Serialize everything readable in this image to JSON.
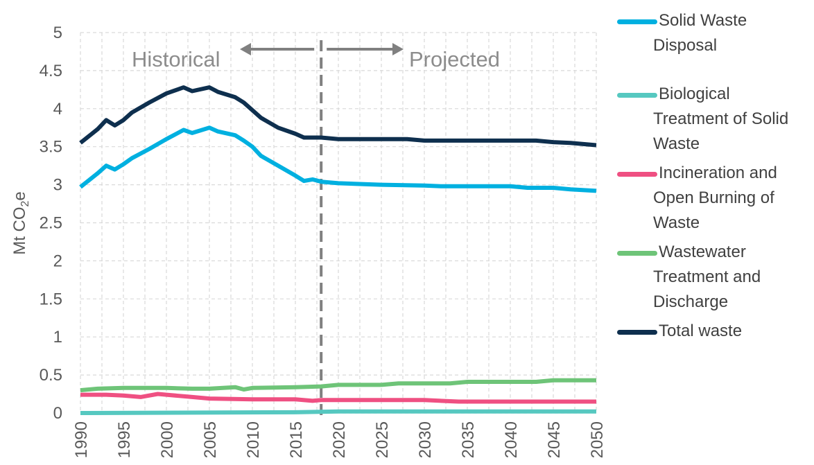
{
  "chart_data": {
    "type": "line",
    "ylabel": "Mt CO2e",
    "ylim": [
      0,
      5
    ],
    "xlim": [
      1990,
      2050
    ],
    "yticks": [
      "0",
      "0.5",
      "1",
      "1.5",
      "2",
      "2.5",
      "3",
      "3.5",
      "4",
      "4.5",
      "5"
    ],
    "xticks": [
      "1990",
      "1995",
      "2000",
      "2005",
      "2010",
      "2015",
      "2020",
      "2025",
      "2030",
      "2035",
      "2040",
      "2045",
      "2050"
    ],
    "grid": true,
    "legend_position": "right",
    "annotations": {
      "historical": "Historical",
      "projected": "Projected",
      "divider_year": 2018
    },
    "series": [
      {
        "name": "Solid Waste Disposal",
        "color": "#00b0e0",
        "x": [
          1990,
          1992,
          1993,
          1994,
          1995,
          1996,
          1998,
          2000,
          2002,
          2003,
          2005,
          2006,
          2008,
          2009,
          2010,
          2011,
          2013,
          2015,
          2016,
          2017,
          2018,
          2020,
          2025,
          2030,
          2032,
          2040,
          2042,
          2045,
          2047,
          2050
        ],
        "y": [
          2.97,
          3.15,
          3.25,
          3.2,
          3.27,
          3.35,
          3.47,
          3.6,
          3.72,
          3.68,
          3.75,
          3.7,
          3.65,
          3.58,
          3.5,
          3.38,
          3.25,
          3.12,
          3.05,
          3.07,
          3.04,
          3.02,
          3.0,
          2.99,
          2.98,
          2.98,
          2.96,
          2.96,
          2.94,
          2.92
        ]
      },
      {
        "name": "Biological Treatment of Solid Waste",
        "color": "#56c8c0",
        "x": [
          1990,
          2015,
          2020,
          2030,
          2040,
          2050
        ],
        "y": [
          0.0,
          0.01,
          0.02,
          0.02,
          0.02,
          0.02
        ]
      },
      {
        "name": "Incineration and Open Burning of Waste",
        "color": "#ef5082",
        "x": [
          1990,
          1993,
          1995,
          1997,
          1999,
          2000,
          2003,
          2005,
          2010,
          2015,
          2017,
          2018,
          2020,
          2030,
          2034,
          2040,
          2045,
          2050
        ],
        "y": [
          0.24,
          0.24,
          0.23,
          0.21,
          0.25,
          0.24,
          0.21,
          0.19,
          0.18,
          0.18,
          0.16,
          0.17,
          0.17,
          0.17,
          0.15,
          0.15,
          0.15,
          0.15
        ]
      },
      {
        "name": "Wastewater Treatment and Discharge",
        "color": "#6ec478",
        "x": [
          1990,
          1992,
          1995,
          2000,
          2003,
          2005,
          2008,
          2009,
          2010,
          2015,
          2018,
          2020,
          2025,
          2027,
          2033,
          2035,
          2043,
          2045,
          2050
        ],
        "y": [
          0.3,
          0.32,
          0.33,
          0.33,
          0.32,
          0.32,
          0.34,
          0.31,
          0.33,
          0.34,
          0.35,
          0.37,
          0.37,
          0.39,
          0.39,
          0.41,
          0.41,
          0.43,
          0.43
        ]
      },
      {
        "name": "Total waste",
        "color": "#0e2f4e",
        "x": [
          1990,
          1992,
          1993,
          1994,
          1995,
          1996,
          1998,
          2000,
          2002,
          2003,
          2005,
          2006,
          2008,
          2009,
          2010,
          2011,
          2013,
          2015,
          2016,
          2018,
          2020,
          2025,
          2028,
          2030,
          2040,
          2043,
          2045,
          2047,
          2050
        ],
        "y": [
          3.55,
          3.73,
          3.85,
          3.78,
          3.85,
          3.95,
          4.08,
          4.2,
          4.28,
          4.23,
          4.28,
          4.22,
          4.15,
          4.08,
          3.98,
          3.88,
          3.75,
          3.67,
          3.62,
          3.62,
          3.6,
          3.6,
          3.6,
          3.58,
          3.58,
          3.58,
          3.56,
          3.55,
          3.52
        ]
      }
    ]
  },
  "legend": {
    "items": [
      {
        "lines": [
          "Solid Waste",
          "Disposal"
        ],
        "color": "#00b0e0"
      },
      {
        "lines": [
          "Biological",
          "Treatment of Solid",
          "Waste"
        ],
        "color": "#56c8c0"
      },
      {
        "lines": [
          "Incineration and",
          "Open Burning of",
          "Waste"
        ],
        "color": "#ef5082"
      },
      {
        "lines": [
          "Wastewater",
          "Treatment and",
          "Discharge"
        ],
        "color": "#6ec478"
      },
      {
        "lines": [
          "Total waste"
        ],
        "color": "#0e2f4e"
      }
    ]
  }
}
